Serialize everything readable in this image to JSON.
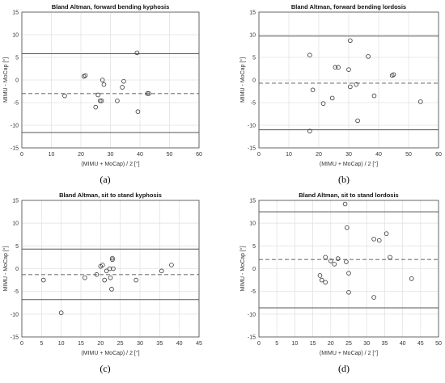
{
  "chart_data": [
    {
      "type": "scatter",
      "title": "Bland Altman, forward bending kyphosis",
      "xlabel": "(MIMU + MoCap) / 2  [°]",
      "ylabel": "MIMU - MoCap  [°]",
      "caption": "(a)",
      "xlim": [
        0,
        60
      ],
      "ylim": [
        -15,
        15
      ],
      "xticks": [
        0,
        10,
        20,
        30,
        40,
        50,
        60
      ],
      "yticks": [
        -15,
        -10,
        -5,
        0,
        5,
        10,
        15
      ],
      "grid": true,
      "mean": -3.0,
      "upper_loa": 5.8,
      "lower_loa": -11.6,
      "points": [
        [
          14.5,
          -3.5
        ],
        [
          21.0,
          0.8
        ],
        [
          21.5,
          1.0
        ],
        [
          25.0,
          -6.0
        ],
        [
          25.8,
          -3.3
        ],
        [
          26.5,
          -4.6
        ],
        [
          27.0,
          -4.6
        ],
        [
          27.3,
          0.0
        ],
        [
          27.8,
          -1.0
        ],
        [
          32.3,
          -4.6
        ],
        [
          34.0,
          -1.6
        ],
        [
          34.5,
          -0.3
        ],
        [
          39.0,
          6.0
        ],
        [
          39.3,
          -7.0
        ],
        [
          42.5,
          -3.0
        ],
        [
          43.0,
          -3.0
        ]
      ]
    },
    {
      "type": "scatter",
      "title": "Bland Altman, forward bending lordosis",
      "xlabel": "(MIMU + MoCap) / 2  [°]",
      "ylabel": "MIMU - MoCap  [°]",
      "caption": "(b)",
      "xlim": [
        0,
        60
      ],
      "ylim": [
        -15,
        15
      ],
      "xticks": [
        0,
        10,
        20,
        30,
        40,
        50,
        60
      ],
      "yticks": [
        -15,
        -10,
        -5,
        0,
        5,
        10,
        15
      ],
      "grid": true,
      "mean": -0.7,
      "upper_loa": 9.7,
      "lower_loa": -11.0,
      "points": [
        [
          17.0,
          -11.3
        ],
        [
          17.0,
          5.5
        ],
        [
          18.0,
          -2.2
        ],
        [
          21.5,
          -5.2
        ],
        [
          24.5,
          -4.0
        ],
        [
          25.5,
          2.8
        ],
        [
          26.5,
          2.8
        ],
        [
          30.5,
          8.7
        ],
        [
          30.5,
          -1.5
        ],
        [
          30.0,
          2.3
        ],
        [
          32.5,
          -1.0
        ],
        [
          33.0,
          -9.0
        ],
        [
          36.5,
          5.2
        ],
        [
          38.5,
          -3.5
        ],
        [
          44.5,
          1.0
        ],
        [
          45.0,
          1.2
        ],
        [
          54.0,
          -4.8
        ]
      ]
    },
    {
      "type": "scatter",
      "title": "Bland Altman, sit to stand kyphosis",
      "xlabel": "(MIMU + MoCap) / 2  [°]",
      "ylabel": "MIMU - MoCap  [°]",
      "caption": "(c)",
      "xlim": [
        0,
        45
      ],
      "ylim": [
        -15,
        15
      ],
      "xticks": [
        0,
        5,
        10,
        15,
        20,
        25,
        30,
        35,
        40,
        45
      ],
      "yticks": [
        -15,
        -10,
        -5,
        0,
        5,
        10,
        15
      ],
      "grid": true,
      "mean": -1.3,
      "upper_loa": 4.3,
      "lower_loa": -6.8,
      "points": [
        [
          5.5,
          -2.5
        ],
        [
          10.0,
          -9.7
        ],
        [
          16.0,
          -2.0
        ],
        [
          19.0,
          -1.3
        ],
        [
          20.0,
          0.5
        ],
        [
          20.5,
          0.8
        ],
        [
          21.0,
          -2.5
        ],
        [
          21.5,
          -0.5
        ],
        [
          22.3,
          0.0
        ],
        [
          22.5,
          -2.0
        ],
        [
          22.8,
          -4.5
        ],
        [
          23.0,
          2.0
        ],
        [
          23.0,
          2.3
        ],
        [
          23.2,
          0.0
        ],
        [
          29.0,
          -2.5
        ],
        [
          35.5,
          -0.5
        ],
        [
          38.0,
          0.8
        ]
      ]
    },
    {
      "type": "scatter",
      "title": "Bland Altman, sit to stand lordosis",
      "xlabel": "(MIMU + MoCap) / 2  [°]",
      "ylabel": "MIMU - MoCap  [°]",
      "caption": "(d)",
      "xlim": [
        0,
        50
      ],
      "ylim": [
        -15,
        15
      ],
      "xticks": [
        0,
        5,
        10,
        15,
        20,
        25,
        30,
        35,
        40,
        45,
        50
      ],
      "yticks": [
        -15,
        -10,
        -5,
        0,
        5,
        10,
        15
      ],
      "grid": true,
      "mean": 2.0,
      "upper_loa": 12.5,
      "lower_loa": -8.6,
      "points": [
        [
          17.0,
          -1.5
        ],
        [
          17.5,
          -2.5
        ],
        [
          18.5,
          2.5
        ],
        [
          18.5,
          -3.0
        ],
        [
          20.0,
          1.7
        ],
        [
          21.0,
          1.0
        ],
        [
          22.0,
          2.2
        ],
        [
          24.0,
          14.2
        ],
        [
          24.5,
          9.0
        ],
        [
          24.3,
          1.5
        ],
        [
          25.0,
          -1.0
        ],
        [
          25.0,
          -5.2
        ],
        [
          32.0,
          6.5
        ],
        [
          32.0,
          -6.3
        ],
        [
          33.5,
          6.2
        ],
        [
          35.5,
          7.7
        ],
        [
          36.5,
          2.5
        ],
        [
          42.5,
          -2.2
        ]
      ]
    }
  ]
}
